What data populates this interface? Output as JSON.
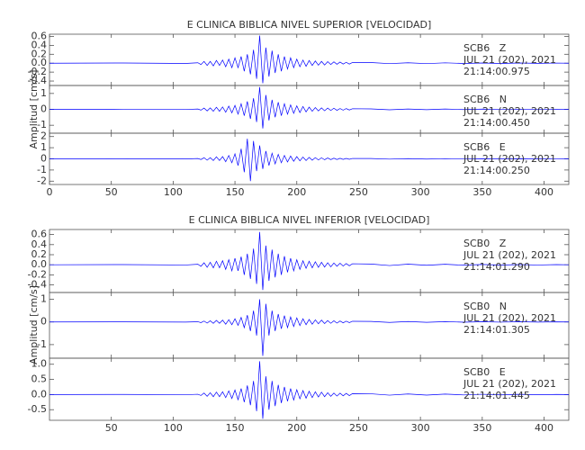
{
  "chart_data": [
    {
      "type": "line",
      "title": "E CLINICA BIBLICA NIVEL SUPERIOR [VELOCIDAD]",
      "ylabel": "Amplitud [cm/s]",
      "color": "#0000ff",
      "xlim": [
        0,
        420
      ],
      "xticks": [
        0,
        50,
        100,
        150,
        200,
        250,
        300,
        350,
        400
      ],
      "x": [
        0,
        60,
        110,
        120,
        122.5,
        125,
        127.5,
        130,
        132.5,
        135,
        137.5,
        140,
        142.5,
        145,
        147.5,
        150,
        152.5,
        155,
        157.5,
        160,
        162.5,
        165,
        167.5,
        170,
        172.5,
        175,
        177.5,
        180,
        182.5,
        185,
        187.5,
        190,
        192.5,
        195,
        197.5,
        200,
        202.5,
        205,
        207.5,
        210,
        212.5,
        215,
        217.5,
        220,
        222.5,
        225,
        227.5,
        230,
        232.5,
        235,
        237.5,
        240,
        242.5,
        245,
        260,
        275,
        290,
        305,
        320,
        335,
        350,
        365,
        380,
        395,
        410,
        420
      ],
      "subplots": [
        {
          "annotation": [
            "SCB6   Z",
            "JUL 21 (202), 2021",
            "21:14:00.975"
          ],
          "ylim": [
            -0.5,
            0.65
          ],
          "yticks": [
            0.6,
            0.4,
            0.2,
            {
              "value": 0,
              "label": "0.0"
            },
            -0.2,
            -0.4
          ],
          "values": [
            0,
            0.005,
            -0.005,
            0.01,
            -0.03,
            0.04,
            -0.05,
            0.04,
            -0.06,
            0.06,
            -0.05,
            0.07,
            -0.08,
            0.09,
            -0.1,
            0.12,
            -0.1,
            0.15,
            -0.18,
            0.2,
            -0.25,
            0.3,
            -0.35,
            0.62,
            -0.45,
            0.35,
            -0.3,
            0.28,
            -0.22,
            0.2,
            -0.18,
            0.15,
            -0.13,
            0.12,
            -0.1,
            0.09,
            -0.08,
            0.07,
            -0.07,
            0.06,
            -0.05,
            0.05,
            -0.045,
            0.04,
            -0.04,
            0.035,
            -0.03,
            0.03,
            -0.025,
            0.025,
            -0.02,
            0.02,
            -0.02,
            0.015,
            0.015,
            -0.01,
            0.01,
            -0.01,
            0.008,
            -0.006,
            0.005,
            -0.005,
            0.004,
            -0.003,
            0.003,
            0
          ]
        },
        {
          "annotation": [
            "SCB6   N",
            "JUL 21 (202), 2021",
            "21:14:00.450"
          ],
          "ylim": [
            -1.5,
            1.5
          ],
          "yticks": [
            1,
            0,
            -1
          ],
          "values": [
            0,
            0.01,
            -0.01,
            0.02,
            -0.05,
            0.08,
            -0.1,
            0.09,
            -0.12,
            0.13,
            -0.12,
            0.15,
            -0.18,
            0.2,
            -0.22,
            0.25,
            -0.3,
            0.35,
            -0.4,
            0.5,
            -0.6,
            0.7,
            -0.8,
            1.4,
            -1.2,
            0.9,
            -0.7,
            0.6,
            -0.5,
            0.45,
            -0.4,
            0.35,
            -0.3,
            0.28,
            -0.25,
            0.22,
            -0.2,
            0.18,
            -0.16,
            0.14,
            -0.12,
            0.11,
            -0.1,
            0.09,
            -0.09,
            0.08,
            -0.07,
            0.07,
            -0.06,
            0.05,
            -0.05,
            0.05,
            -0.04,
            0.04,
            0.03,
            -0.03,
            0.02,
            -0.02,
            0.02,
            -0.015,
            0.015,
            -0.01,
            0.01,
            -0.01,
            0.01,
            0
          ]
        },
        {
          "annotation": [
            "SCB6   E",
            "JUL 21 (202), 2021",
            "21:14:00.250"
          ],
          "ylim": [
            -2.3,
            2.3
          ],
          "yticks": [
            2,
            1,
            0,
            -1,
            -2
          ],
          "values": [
            0,
            0.01,
            -0.01,
            0.03,
            -0.06,
            0.1,
            -0.12,
            0.1,
            -0.15,
            0.18,
            -0.15,
            0.2,
            -0.25,
            0.3,
            -0.35,
            0.45,
            -0.6,
            0.9,
            -1.2,
            1.8,
            -2.0,
            1.6,
            -1.1,
            1.2,
            -0.9,
            0.7,
            -0.6,
            0.5,
            -0.45,
            0.4,
            -0.35,
            0.3,
            -0.28,
            0.25,
            -0.22,
            0.2,
            -0.18,
            0.16,
            -0.15,
            0.13,
            -0.12,
            0.11,
            -0.1,
            0.09,
            -0.08,
            0.08,
            -0.07,
            0.06,
            -0.06,
            0.05,
            -0.05,
            0.04,
            -0.04,
            0.035,
            0.03,
            -0.025,
            0.02,
            -0.02,
            0.015,
            -0.015,
            0.012,
            -0.01,
            0.01,
            -0.008,
            0.006,
            0
          ]
        }
      ]
    },
    {
      "type": "line",
      "title": "E CLINICA BIBLICA NIVEL INFERIOR [VELOCIDAD]",
      "ylabel": "Amplitud [cm/s]",
      "color": "#0000ff",
      "xlim": [
        0,
        420
      ],
      "xticks": [
        50,
        100,
        150,
        200,
        250,
        300,
        350,
        400
      ],
      "x": [
        0,
        60,
        110,
        120,
        122.5,
        125,
        127.5,
        130,
        132.5,
        135,
        137.5,
        140,
        142.5,
        145,
        147.5,
        150,
        152.5,
        155,
        157.5,
        160,
        162.5,
        165,
        167.5,
        170,
        172.5,
        175,
        177.5,
        180,
        182.5,
        185,
        187.5,
        190,
        192.5,
        195,
        197.5,
        200,
        202.5,
        205,
        207.5,
        210,
        212.5,
        215,
        217.5,
        220,
        222.5,
        225,
        227.5,
        230,
        232.5,
        235,
        237.5,
        240,
        242.5,
        245,
        260,
        275,
        290,
        305,
        320,
        335,
        350,
        365,
        380,
        395,
        410,
        420
      ],
      "subplots": [
        {
          "annotation": [
            "SCB0   Z",
            "JUL 21 (202), 2021",
            "21:14:01.290"
          ],
          "ylim": [
            -0.55,
            0.7
          ],
          "yticks": [
            0.6,
            0.4,
            0.2,
            {
              "value": 0,
              "label": "0.0"
            },
            -0.2,
            -0.4
          ],
          "values": [
            0,
            0.004,
            -0.004,
            0.01,
            -0.03,
            0.04,
            -0.05,
            0.05,
            -0.06,
            0.07,
            -0.06,
            0.08,
            -0.09,
            0.1,
            -0.12,
            0.13,
            -0.12,
            0.16,
            -0.2,
            0.22,
            -0.28,
            0.32,
            -0.38,
            0.65,
            -0.5,
            0.38,
            -0.32,
            0.3,
            -0.25,
            0.22,
            -0.2,
            0.17,
            -0.15,
            0.13,
            -0.12,
            0.1,
            -0.09,
            0.08,
            -0.07,
            0.07,
            -0.06,
            0.06,
            -0.05,
            0.05,
            -0.045,
            0.04,
            -0.04,
            0.035,
            -0.03,
            0.03,
            -0.025,
            0.025,
            -0.02,
            0.02,
            0.015,
            -0.015,
            0.012,
            -0.01,
            0.01,
            -0.008,
            0.006,
            -0.005,
            0.004,
            -0.004,
            0.003,
            0
          ]
        },
        {
          "annotation": [
            "SCB0   N",
            "JUL 21 (202), 2021",
            "21:14:01.305"
          ],
          "ylim": [
            -1.6,
            1.3
          ],
          "yticks": [
            1,
            0,
            -1
          ],
          "values": [
            0,
            0.005,
            -0.005,
            0.01,
            -0.03,
            0.04,
            -0.05,
            0.05,
            -0.06,
            0.07,
            -0.06,
            0.08,
            -0.1,
            0.1,
            -0.12,
            0.14,
            -0.15,
            0.2,
            -0.25,
            0.3,
            -0.4,
            0.5,
            -0.6,
            1.0,
            -1.5,
            0.8,
            -0.6,
            0.5,
            -0.4,
            0.35,
            -0.3,
            0.28,
            -0.25,
            0.22,
            -0.2,
            0.18,
            -0.16,
            0.14,
            -0.12,
            0.11,
            -0.1,
            0.09,
            -0.08,
            0.08,
            -0.07,
            0.06,
            -0.06,
            0.05,
            -0.05,
            0.04,
            -0.04,
            0.035,
            -0.03,
            0.03,
            0.025,
            -0.02,
            0.02,
            -0.015,
            0.015,
            -0.01,
            0.01,
            -0.008,
            0.008,
            -0.006,
            0.005,
            0
          ]
        },
        {
          "annotation": [
            "SCB0   E",
            "JUL 21 (202), 2021",
            "21:14:01.445"
          ],
          "ylim": [
            -0.85,
            1.2
          ],
          "yticks": [
            {
              "value": 1,
              "label": "1.0"
            },
            0.5,
            {
              "value": 0,
              "label": "0.0"
            },
            -0.5
          ],
          "values": [
            0,
            0.005,
            -0.005,
            0.01,
            -0.03,
            0.05,
            -0.06,
            0.06,
            -0.07,
            0.08,
            -0.07,
            0.09,
            -0.1,
            0.12,
            -0.13,
            0.15,
            -0.17,
            0.2,
            -0.25,
            0.3,
            -0.35,
            0.45,
            -0.55,
            1.1,
            -0.8,
            0.6,
            -0.5,
            0.45,
            -0.38,
            0.32,
            -0.28,
            0.25,
            -0.22,
            0.2,
            -0.18,
            0.16,
            -0.14,
            0.13,
            -0.12,
            0.11,
            -0.1,
            0.09,
            -0.08,
            0.08,
            -0.07,
            0.06,
            -0.06,
            0.05,
            -0.05,
            0.045,
            -0.04,
            0.04,
            -0.035,
            0.03,
            0.025,
            -0.02,
            0.02,
            -0.018,
            0.015,
            -0.012,
            0.01,
            -0.01,
            0.008,
            -0.006,
            0.005,
            0
          ]
        }
      ]
    }
  ]
}
